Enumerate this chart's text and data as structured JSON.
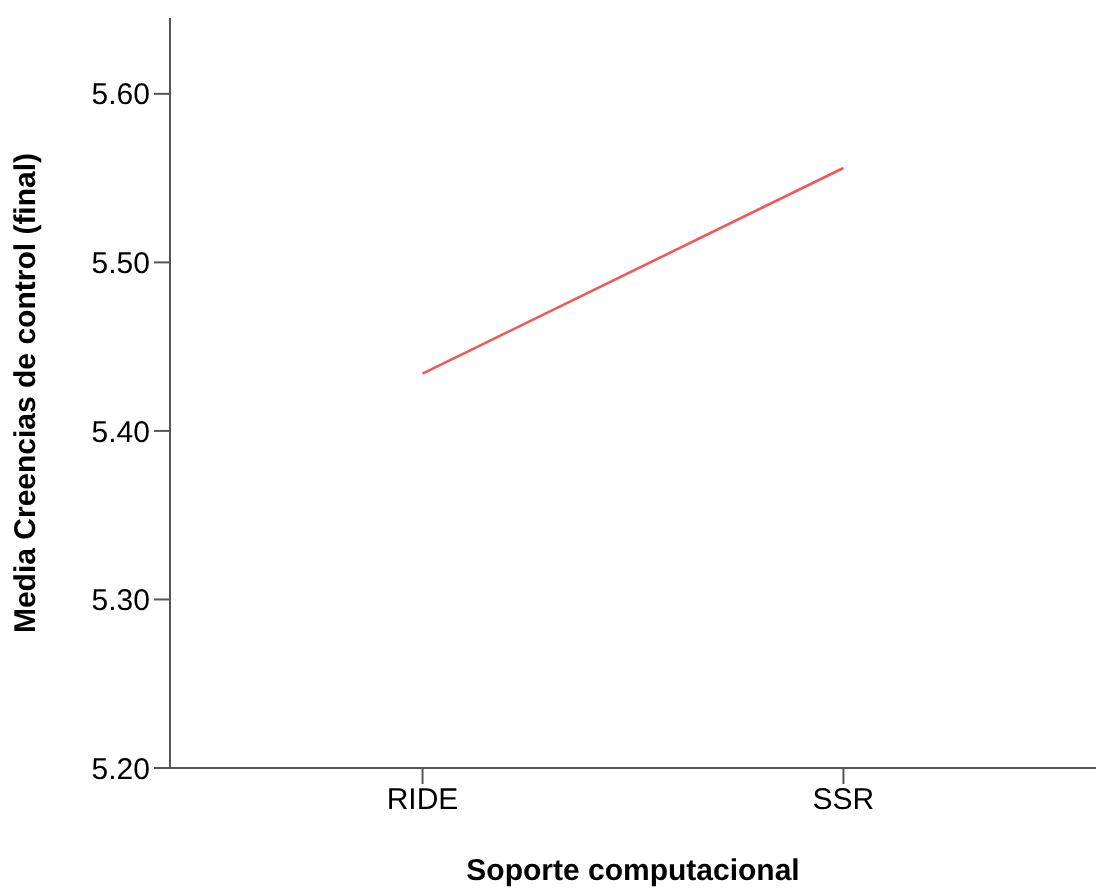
{
  "chart_data": {
    "type": "line",
    "xlabel": "Soporte computacional",
    "ylabel": "Media Creencias de control (final)",
    "categories": [
      "RIDE",
      "SSR"
    ],
    "series": [
      {
        "color": "#f0585a",
        "values": [
          5.434,
          5.556
        ]
      }
    ],
    "ylim": [
      5.2,
      5.645
    ],
    "yticks": [
      {
        "value": 5.2,
        "label": "5.20"
      },
      {
        "value": 5.3,
        "label": "5.30"
      },
      {
        "value": 5.4,
        "label": "5.40"
      },
      {
        "value": 5.5,
        "label": "5.50"
      },
      {
        "value": 5.6,
        "label": "5.60"
      }
    ],
    "marker": "none",
    "legend": false,
    "grid": false
  }
}
